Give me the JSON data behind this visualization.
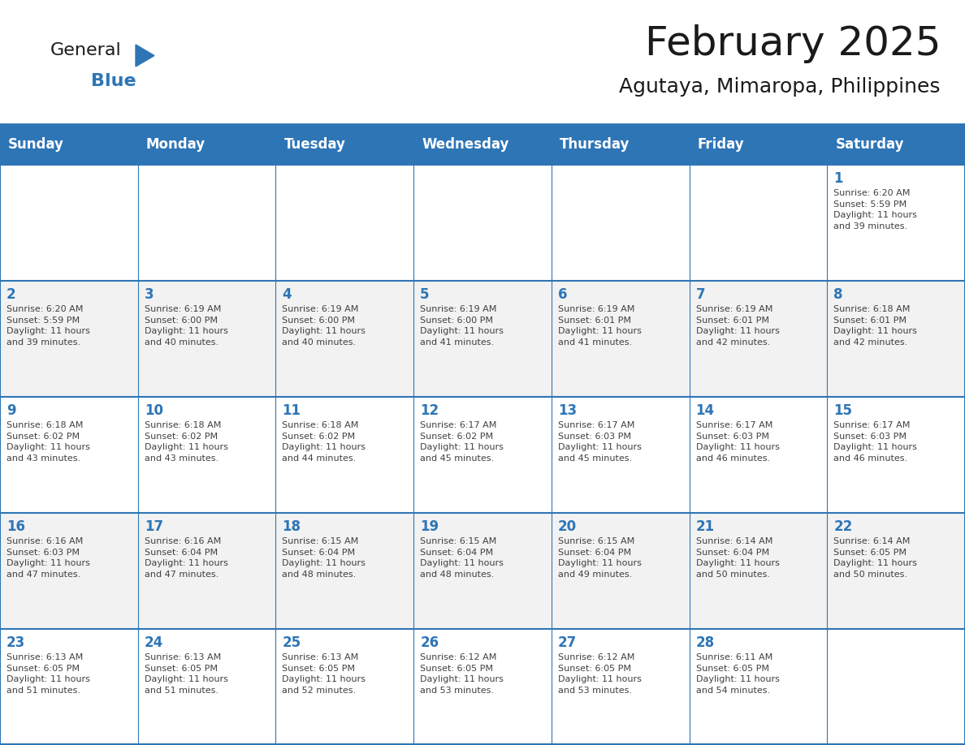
{
  "title": "February 2025",
  "subtitle": "Agutaya, Mimaropa, Philippines",
  "header_bg": "#2E75B6",
  "header_text_color": "#FFFFFF",
  "cell_bg_alt": "#F2F2F2",
  "cell_bg_white": "#FFFFFF",
  "grid_line_color": "#2E75B6",
  "day_number_color": "#2E75B6",
  "info_text_color": "#404040",
  "days_of_week": [
    "Sunday",
    "Monday",
    "Tuesday",
    "Wednesday",
    "Thursday",
    "Friday",
    "Saturday"
  ],
  "weeks": [
    [
      {
        "day": null,
        "info": ""
      },
      {
        "day": null,
        "info": ""
      },
      {
        "day": null,
        "info": ""
      },
      {
        "day": null,
        "info": ""
      },
      {
        "day": null,
        "info": ""
      },
      {
        "day": null,
        "info": ""
      },
      {
        "day": 1,
        "info": "Sunrise: 6:20 AM\nSunset: 5:59 PM\nDaylight: 11 hours\nand 39 minutes."
      }
    ],
    [
      {
        "day": 2,
        "info": "Sunrise: 6:20 AM\nSunset: 5:59 PM\nDaylight: 11 hours\nand 39 minutes."
      },
      {
        "day": 3,
        "info": "Sunrise: 6:19 AM\nSunset: 6:00 PM\nDaylight: 11 hours\nand 40 minutes."
      },
      {
        "day": 4,
        "info": "Sunrise: 6:19 AM\nSunset: 6:00 PM\nDaylight: 11 hours\nand 40 minutes."
      },
      {
        "day": 5,
        "info": "Sunrise: 6:19 AM\nSunset: 6:00 PM\nDaylight: 11 hours\nand 41 minutes."
      },
      {
        "day": 6,
        "info": "Sunrise: 6:19 AM\nSunset: 6:01 PM\nDaylight: 11 hours\nand 41 minutes."
      },
      {
        "day": 7,
        "info": "Sunrise: 6:19 AM\nSunset: 6:01 PM\nDaylight: 11 hours\nand 42 minutes."
      },
      {
        "day": 8,
        "info": "Sunrise: 6:18 AM\nSunset: 6:01 PM\nDaylight: 11 hours\nand 42 minutes."
      }
    ],
    [
      {
        "day": 9,
        "info": "Sunrise: 6:18 AM\nSunset: 6:02 PM\nDaylight: 11 hours\nand 43 minutes."
      },
      {
        "day": 10,
        "info": "Sunrise: 6:18 AM\nSunset: 6:02 PM\nDaylight: 11 hours\nand 43 minutes."
      },
      {
        "day": 11,
        "info": "Sunrise: 6:18 AM\nSunset: 6:02 PM\nDaylight: 11 hours\nand 44 minutes."
      },
      {
        "day": 12,
        "info": "Sunrise: 6:17 AM\nSunset: 6:02 PM\nDaylight: 11 hours\nand 45 minutes."
      },
      {
        "day": 13,
        "info": "Sunrise: 6:17 AM\nSunset: 6:03 PM\nDaylight: 11 hours\nand 45 minutes."
      },
      {
        "day": 14,
        "info": "Sunrise: 6:17 AM\nSunset: 6:03 PM\nDaylight: 11 hours\nand 46 minutes."
      },
      {
        "day": 15,
        "info": "Sunrise: 6:17 AM\nSunset: 6:03 PM\nDaylight: 11 hours\nand 46 minutes."
      }
    ],
    [
      {
        "day": 16,
        "info": "Sunrise: 6:16 AM\nSunset: 6:03 PM\nDaylight: 11 hours\nand 47 minutes."
      },
      {
        "day": 17,
        "info": "Sunrise: 6:16 AM\nSunset: 6:04 PM\nDaylight: 11 hours\nand 47 minutes."
      },
      {
        "day": 18,
        "info": "Sunrise: 6:15 AM\nSunset: 6:04 PM\nDaylight: 11 hours\nand 48 minutes."
      },
      {
        "day": 19,
        "info": "Sunrise: 6:15 AM\nSunset: 6:04 PM\nDaylight: 11 hours\nand 48 minutes."
      },
      {
        "day": 20,
        "info": "Sunrise: 6:15 AM\nSunset: 6:04 PM\nDaylight: 11 hours\nand 49 minutes."
      },
      {
        "day": 21,
        "info": "Sunrise: 6:14 AM\nSunset: 6:04 PM\nDaylight: 11 hours\nand 50 minutes."
      },
      {
        "day": 22,
        "info": "Sunrise: 6:14 AM\nSunset: 6:05 PM\nDaylight: 11 hours\nand 50 minutes."
      }
    ],
    [
      {
        "day": 23,
        "info": "Sunrise: 6:13 AM\nSunset: 6:05 PM\nDaylight: 11 hours\nand 51 minutes."
      },
      {
        "day": 24,
        "info": "Sunrise: 6:13 AM\nSunset: 6:05 PM\nDaylight: 11 hours\nand 51 minutes."
      },
      {
        "day": 25,
        "info": "Sunrise: 6:13 AM\nSunset: 6:05 PM\nDaylight: 11 hours\nand 52 minutes."
      },
      {
        "day": 26,
        "info": "Sunrise: 6:12 AM\nSunset: 6:05 PM\nDaylight: 11 hours\nand 53 minutes."
      },
      {
        "day": 27,
        "info": "Sunrise: 6:12 AM\nSunset: 6:05 PM\nDaylight: 11 hours\nand 53 minutes."
      },
      {
        "day": 28,
        "info": "Sunrise: 6:11 AM\nSunset: 6:05 PM\nDaylight: 11 hours\nand 54 minutes."
      },
      {
        "day": null,
        "info": ""
      }
    ]
  ],
  "logo_color_general": "#1a1a1a",
  "logo_color_blue": "#2E75B6",
  "logo_triangle_color": "#2E75B6",
  "fig_width": 11.88,
  "fig_height": 9.18,
  "dpi": 100,
  "title_fontsize": 36,
  "subtitle_fontsize": 18,
  "header_fontsize": 12,
  "day_num_fontsize": 12,
  "info_fontsize": 8
}
